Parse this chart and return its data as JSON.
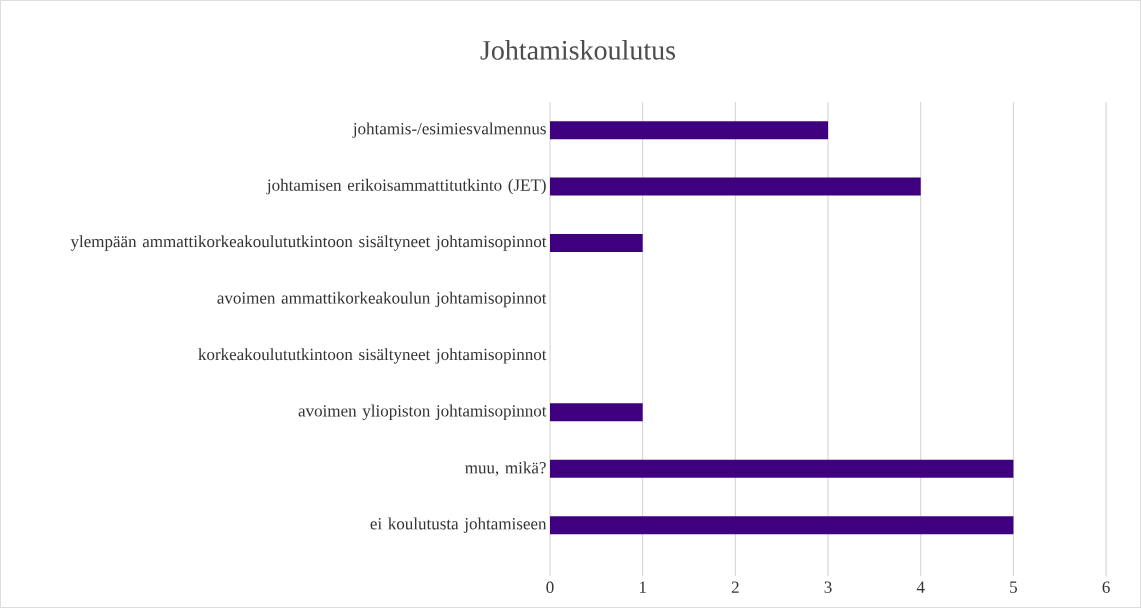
{
  "chart_data": {
    "type": "bar",
    "orientation": "horizontal",
    "title": "Johtamiskoulutus",
    "categories": [
      "johtamis-/esimiesvalmennus",
      "johtamisen erikoisammattitutkinto (JET)",
      "ylempään ammattikorkeakoulututkintoon sisältyneet johtamisopinnot",
      "avoimen ammattikorkeakoulun johtamisopinnot",
      "korkeakoulututkintoon sisältyneet johtamisopinnot",
      "avoimen yliopiston johtamisopinnot",
      "muu, mikä?",
      "ei koulutusta johtamiseen"
    ],
    "values": [
      3,
      4,
      1,
      0,
      0,
      1,
      5,
      5
    ],
    "color": "#3f007f",
    "xlim": [
      0,
      6
    ],
    "xticks": [
      0,
      1,
      2,
      3,
      4,
      5,
      6
    ],
    "grid": "x"
  }
}
